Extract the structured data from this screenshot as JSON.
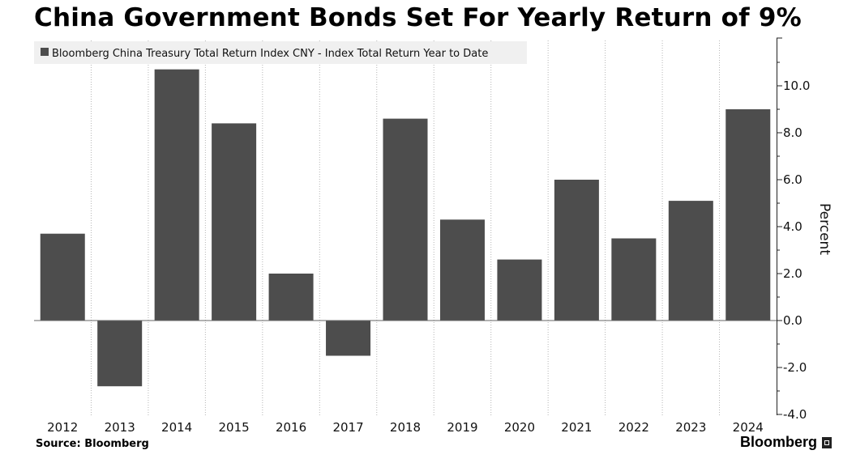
{
  "page": {
    "source": "Source: Bloomberg",
    "brand": "Bloomberg"
  },
  "chart_data": {
    "type": "bar",
    "title": "China Government Bonds Set For Yearly Return of 9%",
    "categories": [
      "2012",
      "2013",
      "2014",
      "2015",
      "2016",
      "2017",
      "2018",
      "2019",
      "2020",
      "2021",
      "2022",
      "2023",
      "2024"
    ],
    "series": [
      {
        "name": "Bloomberg China Treasury Total Return Index CNY - Index Total Return Year to Date",
        "values": [
          3.7,
          -2.8,
          10.7,
          8.4,
          2.0,
          -1.5,
          8.6,
          4.3,
          2.6,
          6.0,
          3.5,
          5.1,
          9.0
        ],
        "color": "#4d4d4d"
      }
    ],
    "ylabel": "Percent",
    "ylim": [
      -4.0,
      12.0
    ],
    "yticks": [
      "-4.0",
      "-2.0",
      "0.0",
      "2.0",
      "4.0",
      "6.0",
      "8.0",
      "10.0"
    ],
    "y_axis_side": "right",
    "grid": "vertical dotted",
    "legend_position": "top-left"
  }
}
